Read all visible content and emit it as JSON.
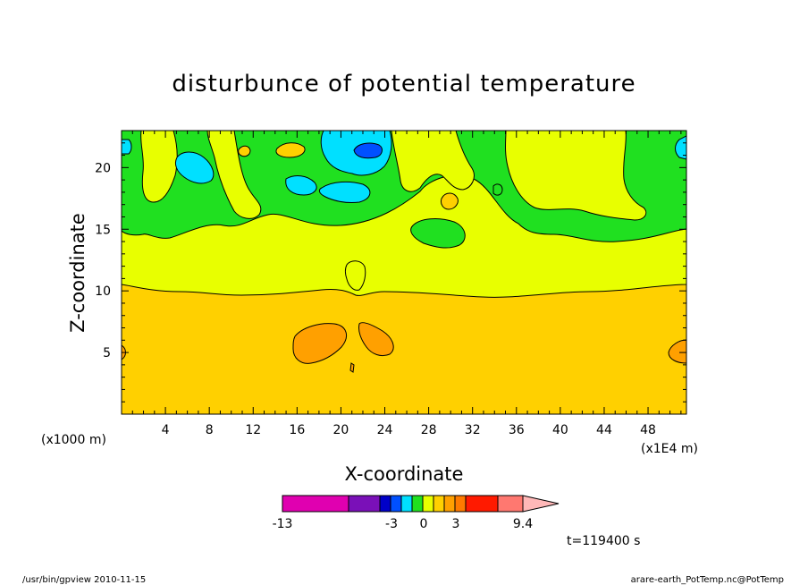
{
  "chart_data": {
    "type": "heatmap",
    "title": "disturbunce of potential temperature",
    "xlabel": "X-coordinate",
    "ylabel": "Z-coordinate",
    "x_units_left": "(x1000 m)",
    "x_units_right": "(x1E4 m)",
    "x_ticks": [
      "4",
      "8",
      "12",
      "16",
      "20",
      "24",
      "28",
      "32",
      "36",
      "40",
      "44",
      "48"
    ],
    "y_ticks": [
      "5",
      "10",
      "15",
      "20"
    ],
    "xlim": [
      0,
      51.5
    ],
    "ylim": [
      0,
      23
    ],
    "colorbar": {
      "labels": [
        "-13",
        "-3",
        "0",
        "3",
        "9.4"
      ],
      "colors": [
        "#e000b0",
        "#7a10b8",
        "#0000c8",
        "#0050ff",
        "#00e0ff",
        "#20e020",
        "#e8ff00",
        "#ffd000",
        "#ffa000",
        "#ff7a00",
        "#ff1a00",
        "#ff7870",
        "#ffb8b8"
      ]
    },
    "time_label": "t=119400 s"
  },
  "footer": {
    "left": "/usr/bin/gpview   2010-11-15",
    "right": "arare-earth_PotTemp.nc@PotTemp"
  }
}
